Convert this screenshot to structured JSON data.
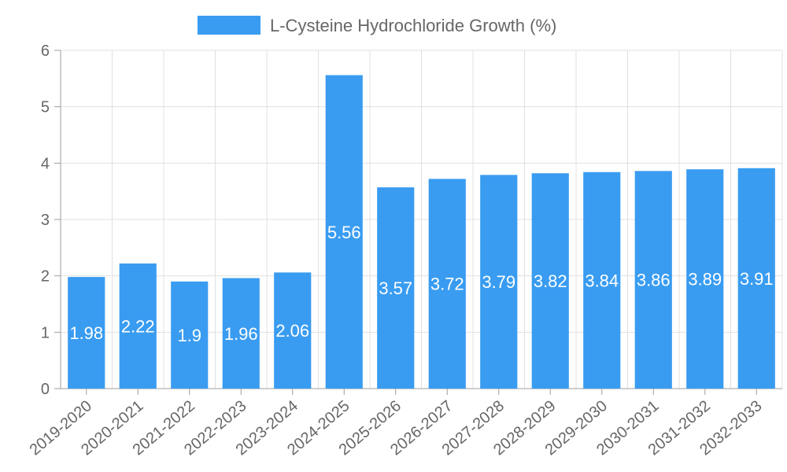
{
  "chart_data": {
    "type": "bar",
    "title": "",
    "xlabel": "",
    "ylabel": "",
    "ylim": [
      0,
      6
    ],
    "yticks": [
      0,
      1,
      2,
      3,
      4,
      5,
      6
    ],
    "categories": [
      "2019-2020",
      "2020-2021",
      "2021-2022",
      "2022-2023",
      "2023-2024",
      "2024-2025",
      "2025-2026",
      "2026-2027",
      "2027-2028",
      "2028-2029",
      "2029-2030",
      "2030-2031",
      "2031-2032",
      "2032-2033"
    ],
    "series": [
      {
        "name": "L-Cysteine Hydrochloride Growth (%)",
        "color": "#399cf1",
        "values": [
          1.98,
          2.22,
          1.9,
          1.96,
          2.06,
          5.56,
          3.57,
          3.72,
          3.79,
          3.82,
          3.84,
          3.86,
          3.89,
          3.91
        ]
      }
    ],
    "grid": true,
    "legend_position": "top-center"
  }
}
